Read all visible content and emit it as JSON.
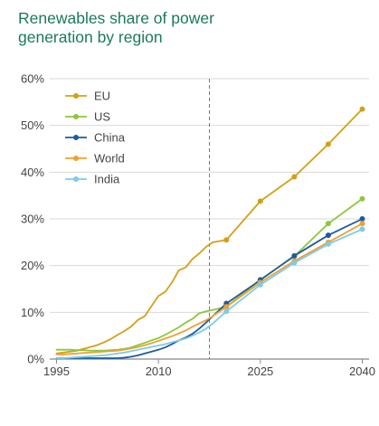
{
  "chart_data": {
    "type": "line",
    "title_lines": [
      "Renewables share of power",
      "generation by region"
    ],
    "xlabel": "",
    "ylabel": "",
    "xlim": [
      1994,
      2041
    ],
    "ylim": [
      0,
      60
    ],
    "x_ticks": [
      1995,
      2010,
      2025,
      2040
    ],
    "x_tick_labels": [
      "1995",
      "2010",
      "2025",
      "2040"
    ],
    "y_ticks": [
      0,
      10,
      20,
      30,
      40,
      50,
      60
    ],
    "y_tick_labels": [
      "0%",
      "10%",
      "20%",
      "30%",
      "40%",
      "50%",
      "60%"
    ],
    "grid": "horizontal",
    "divider_x": 2017.5,
    "legend_position": "top-left",
    "series": [
      {
        "name": "EU",
        "color": "#d4a017",
        "x": [
          1995,
          1996,
          1997,
          1998,
          1999,
          2000,
          2001,
          2002,
          2003,
          2004,
          2005,
          2006,
          2007,
          2008,
          2009,
          2010,
          2011,
          2012,
          2013,
          2014,
          2015,
          2016,
          2017,
          2018
        ],
        "y": [
          1.2,
          1.4,
          1.6,
          1.8,
          2.2,
          2.6,
          3.0,
          3.6,
          4.3,
          5.2,
          6.0,
          7.0,
          8.4,
          9.2,
          11.4,
          13.5,
          14.4,
          16.4,
          19.0,
          19.6,
          21.4,
          22.6,
          24.0,
          25.0
        ],
        "markers_x": [
          2020,
          2025,
          2030,
          2035,
          2040
        ],
        "markers_y": [
          25.5,
          33.8,
          39.0,
          46.0,
          53.5
        ]
      },
      {
        "name": "US",
        "color": "#8dc63f",
        "x": [
          1995,
          1996,
          1997,
          1998,
          1999,
          2000,
          2001,
          2002,
          2003,
          2004,
          2005,
          2006,
          2007,
          2008,
          2009,
          2010,
          2011,
          2012,
          2013,
          2014,
          2015,
          2016,
          2017,
          2018
        ],
        "y": [
          2.0,
          2.0,
          2.0,
          1.9,
          1.9,
          1.8,
          1.8,
          1.8,
          1.9,
          2.0,
          2.2,
          2.5,
          3.0,
          3.5,
          4.0,
          4.5,
          5.2,
          6.0,
          6.8,
          7.8,
          8.6,
          9.8,
          10.2,
          10.5
        ],
        "markers_x": [
          2020,
          2025,
          2030,
          2035,
          2040
        ],
        "markers_y": [
          11.2,
          17.0,
          22.0,
          29.0,
          34.3
        ]
      },
      {
        "name": "China",
        "color": "#1f5aa0",
        "x": [
          1995,
          1996,
          1997,
          1998,
          1999,
          2000,
          2001,
          2002,
          2003,
          2004,
          2005,
          2006,
          2007,
          2008,
          2009,
          2010,
          2011,
          2012,
          2013,
          2014,
          2015,
          2016,
          2017,
          2018
        ],
        "y": [
          0.2,
          0.2,
          0.2,
          0.2,
          0.2,
          0.2,
          0.2,
          0.2,
          0.2,
          0.2,
          0.3,
          0.5,
          0.8,
          1.2,
          1.6,
          2.0,
          2.5,
          3.2,
          4.0,
          4.6,
          5.4,
          6.5,
          7.8,
          9.2
        ],
        "markers_x": [
          2020,
          2025,
          2030,
          2035,
          2040
        ],
        "markers_y": [
          11.9,
          16.9,
          22.1,
          26.5,
          30.0
        ]
      },
      {
        "name": "World",
        "color": "#f0a030",
        "x": [
          1995,
          1996,
          1997,
          1998,
          1999,
          2000,
          2001,
          2002,
          2003,
          2004,
          2005,
          2006,
          2007,
          2008,
          2009,
          2010,
          2011,
          2012,
          2013,
          2014,
          2015,
          2016,
          2017,
          2018
        ],
        "y": [
          1.0,
          1.0,
          1.1,
          1.2,
          1.3,
          1.4,
          1.5,
          1.6,
          1.7,
          1.8,
          2.0,
          2.3,
          2.6,
          3.0,
          3.4,
          3.9,
          4.4,
          4.9,
          5.5,
          6.1,
          6.9,
          7.6,
          8.3,
          9.2
        ],
        "markers_x": [
          2020,
          2025,
          2030,
          2035,
          2040
        ],
        "markers_y": [
          11.2,
          16.4,
          21.0,
          25.0,
          29.0
        ]
      },
      {
        "name": "India",
        "color": "#7ecbea",
        "x": [
          1995,
          1996,
          1997,
          1998,
          1999,
          2000,
          2001,
          2002,
          2003,
          2004,
          2005,
          2006,
          2007,
          2008,
          2009,
          2010,
          2011,
          2012,
          2013,
          2014,
          2015,
          2016,
          2017,
          2018
        ],
        "y": [
          0.2,
          0.2,
          0.3,
          0.4,
          0.5,
          0.6,
          0.7,
          0.8,
          1.0,
          1.2,
          1.4,
          1.7,
          2.0,
          2.3,
          2.6,
          2.9,
          3.2,
          3.6,
          4.0,
          4.4,
          5.0,
          5.7,
          6.5,
          7.6
        ],
        "markers_x": [
          2020,
          2025,
          2030,
          2035,
          2040
        ],
        "markers_y": [
          10.2,
          15.9,
          20.6,
          24.6,
          27.8
        ]
      }
    ]
  }
}
